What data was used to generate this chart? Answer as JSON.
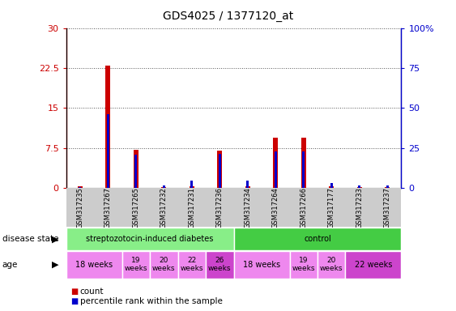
{
  "title": "GDS4025 / 1377120_at",
  "samples": [
    "GSM317235",
    "GSM317267",
    "GSM317265",
    "GSM317232",
    "GSM317231",
    "GSM317236",
    "GSM317234",
    "GSM317264",
    "GSM317266",
    "GSM317177",
    "GSM317233",
    "GSM317237"
  ],
  "count_values": [
    0.3,
    23.0,
    7.2,
    0.2,
    0.3,
    7.0,
    0.3,
    9.5,
    9.5,
    0.3,
    0.2,
    0.2
  ],
  "percentile_values": [
    0.5,
    46.0,
    21.0,
    1.5,
    4.5,
    21.5,
    4.5,
    23.0,
    23.0,
    3.0,
    1.5,
    1.5
  ],
  "ylim_left": [
    0,
    30
  ],
  "ylim_right": [
    0,
    100
  ],
  "yticks_left": [
    0,
    7.5,
    15,
    22.5,
    30
  ],
  "yticks_right": [
    0,
    25,
    50,
    75,
    100
  ],
  "ytick_labels_left": [
    "0",
    "7.5",
    "15",
    "22.5",
    "30"
  ],
  "ytick_labels_right": [
    "0",
    "25",
    "50",
    "75",
    "100%"
  ],
  "count_color": "#cc0000",
  "percentile_color": "#0000cc",
  "bar_width": 0.18,
  "disease_state_groups": [
    {
      "label": "streptozotocin-induced diabetes",
      "start": 0,
      "end": 6,
      "color": "#88ee88"
    },
    {
      "label": "control",
      "start": 6,
      "end": 12,
      "color": "#44cc44"
    }
  ],
  "age_groups": [
    {
      "label": "18 weeks",
      "start": 0,
      "end": 2,
      "color": "#ee88ee",
      "fontsize": 7
    },
    {
      "label": "19\nweeks",
      "start": 2,
      "end": 3,
      "color": "#ee88ee",
      "fontsize": 6.5
    },
    {
      "label": "20\nweeks",
      "start": 3,
      "end": 4,
      "color": "#ee88ee",
      "fontsize": 6.5
    },
    {
      "label": "22\nweeks",
      "start": 4,
      "end": 5,
      "color": "#ee88ee",
      "fontsize": 6.5
    },
    {
      "label": "26\nweeks",
      "start": 5,
      "end": 6,
      "color": "#cc44cc",
      "fontsize": 6.5
    },
    {
      "label": "18 weeks",
      "start": 6,
      "end": 8,
      "color": "#ee88ee",
      "fontsize": 7
    },
    {
      "label": "19\nweeks",
      "start": 8,
      "end": 9,
      "color": "#ee88ee",
      "fontsize": 6.5
    },
    {
      "label": "20\nweeks",
      "start": 9,
      "end": 10,
      "color": "#ee88ee",
      "fontsize": 6.5
    },
    {
      "label": "22 weeks",
      "start": 10,
      "end": 12,
      "color": "#cc44cc",
      "fontsize": 7
    }
  ],
  "legend_count_label": "count",
  "legend_percentile_label": "percentile rank within the sample",
  "background_color": "#ffffff",
  "grid_color": "#555555",
  "title_fontsize": 10,
  "sample_bg_color": "#cccccc"
}
